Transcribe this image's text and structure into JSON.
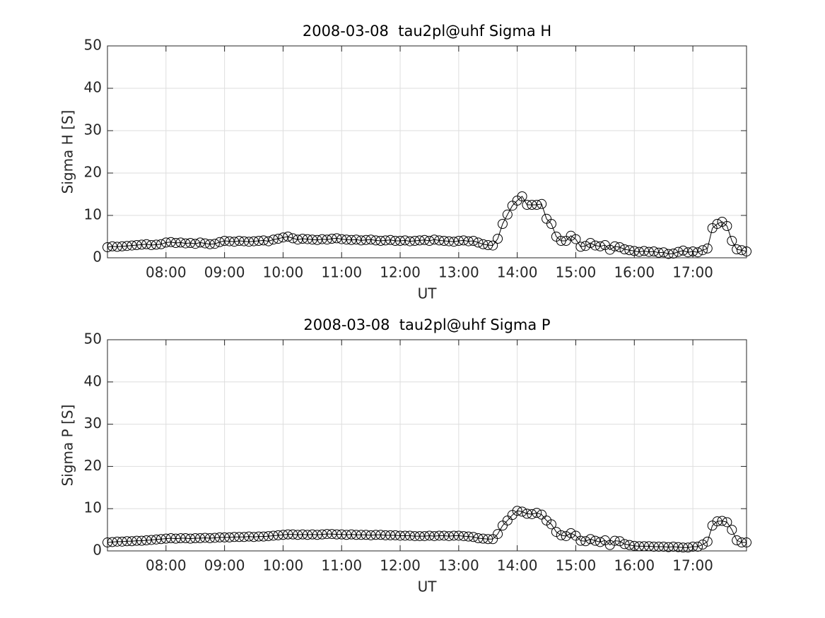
{
  "chart_data": [
    {
      "type": "line",
      "title": "2008-03-08  tau2pl@uhf Sigma H",
      "xlabel": "UT",
      "ylabel": "Sigma H [S]",
      "x": [
        "07:00",
        "07:05",
        "07:10",
        "07:15",
        "07:20",
        "07:25",
        "07:30",
        "07:35",
        "07:40",
        "07:45",
        "07:50",
        "07:55",
        "08:00",
        "08:05",
        "08:10",
        "08:15",
        "08:20",
        "08:25",
        "08:30",
        "08:35",
        "08:40",
        "08:45",
        "08:50",
        "08:55",
        "09:00",
        "09:05",
        "09:10",
        "09:15",
        "09:20",
        "09:25",
        "09:30",
        "09:35",
        "09:40",
        "09:45",
        "09:50",
        "09:55",
        "10:00",
        "10:05",
        "10:10",
        "10:15",
        "10:20",
        "10:25",
        "10:30",
        "10:35",
        "10:40",
        "10:45",
        "10:50",
        "10:55",
        "11:00",
        "11:05",
        "11:10",
        "11:15",
        "11:20",
        "11:25",
        "11:30",
        "11:35",
        "11:40",
        "11:45",
        "11:50",
        "11:55",
        "12:00",
        "12:05",
        "12:10",
        "12:15",
        "12:20",
        "12:25",
        "12:30",
        "12:35",
        "12:40",
        "12:45",
        "12:50",
        "12:55",
        "13:00",
        "13:05",
        "13:10",
        "13:15",
        "13:20",
        "13:25",
        "13:30",
        "13:35",
        "13:40",
        "13:45",
        "13:50",
        "13:55",
        "14:00",
        "14:05",
        "14:10",
        "14:15",
        "14:20",
        "14:25",
        "14:30",
        "14:35",
        "14:40",
        "14:45",
        "14:50",
        "14:55",
        "15:00",
        "15:05",
        "15:10",
        "15:15",
        "15:20",
        "15:25",
        "15:30",
        "15:35",
        "15:40",
        "15:45",
        "15:50",
        "15:55",
        "16:00",
        "16:05",
        "16:10",
        "16:15",
        "16:20",
        "16:25",
        "16:30",
        "16:35",
        "16:40",
        "16:45",
        "16:50",
        "16:55",
        "17:00",
        "17:05",
        "17:10",
        "17:15",
        "17:20",
        "17:25",
        "17:30",
        "17:35",
        "17:40",
        "17:45",
        "17:50",
        "17:55"
      ],
      "values": [
        2.5,
        2.7,
        2.6,
        2.7,
        2.8,
        2.9,
        3.0,
        3.1,
        3.2,
        3.0,
        3.1,
        3.2,
        3.6,
        3.7,
        3.5,
        3.6,
        3.4,
        3.5,
        3.3,
        3.6,
        3.4,
        3.2,
        3.3,
        3.7,
        4.0,
        3.9,
        3.8,
        4.0,
        3.9,
        3.8,
        3.9,
        4.0,
        4.1,
        3.9,
        4.3,
        4.5,
        4.8,
        5.0,
        4.6,
        4.3,
        4.5,
        4.4,
        4.3,
        4.2,
        4.4,
        4.3,
        4.5,
        4.6,
        4.4,
        4.3,
        4.2,
        4.3,
        4.1,
        4.2,
        4.3,
        4.1,
        4.0,
        4.1,
        4.2,
        4.0,
        4.0,
        4.1,
        3.9,
        4.0,
        4.1,
        4.2,
        4.0,
        4.3,
        4.1,
        4.0,
        3.9,
        3.8,
        4.0,
        4.1,
        3.9,
        4.0,
        3.6,
        3.2,
        3.0,
        2.9,
        4.5,
        8.0,
        10.2,
        12.3,
        13.5,
        14.5,
        12.5,
        12.5,
        12.5,
        12.7,
        9.2,
        8.0,
        5.0,
        4.0,
        4.0,
        5.2,
        4.4,
        2.6,
        2.8,
        3.5,
        2.9,
        2.7,
        3.0,
        1.9,
        2.7,
        2.5,
        2.0,
        1.8,
        1.6,
        1.4,
        1.6,
        1.4,
        1.5,
        1.2,
        1.3,
        0.9,
        1.0,
        1.4,
        1.7,
        1.3,
        1.5,
        1.3,
        1.8,
        2.2,
        7.0,
        8.0,
        8.5,
        7.5,
        4.0,
        2.0,
        1.8,
        1.5
      ],
      "color": "#000000",
      "marker": "circle",
      "xlim": [
        "07:00",
        "17:55"
      ],
      "xticks": [
        "08:00",
        "09:00",
        "10:00",
        "11:00",
        "12:00",
        "13:00",
        "14:00",
        "15:00",
        "16:00",
        "17:00"
      ],
      "ylim": [
        0,
        50
      ],
      "yticks": [
        0,
        10,
        20,
        30,
        40,
        50
      ],
      "grid": true
    },
    {
      "type": "line",
      "title": "2008-03-08  tau2pl@uhf Sigma P",
      "xlabel": "UT",
      "ylabel": "Sigma P [S]",
      "x": [
        "07:00",
        "07:05",
        "07:10",
        "07:15",
        "07:20",
        "07:25",
        "07:30",
        "07:35",
        "07:40",
        "07:45",
        "07:50",
        "07:55",
        "08:00",
        "08:05",
        "08:10",
        "08:15",
        "08:20",
        "08:25",
        "08:30",
        "08:35",
        "08:40",
        "08:45",
        "08:50",
        "08:55",
        "09:00",
        "09:05",
        "09:10",
        "09:15",
        "09:20",
        "09:25",
        "09:30",
        "09:35",
        "09:40",
        "09:45",
        "09:50",
        "09:55",
        "10:00",
        "10:05",
        "10:10",
        "10:15",
        "10:20",
        "10:25",
        "10:30",
        "10:35",
        "10:40",
        "10:45",
        "10:50",
        "10:55",
        "11:00",
        "11:05",
        "11:10",
        "11:15",
        "11:20",
        "11:25",
        "11:30",
        "11:35",
        "11:40",
        "11:45",
        "11:50",
        "11:55",
        "12:00",
        "12:05",
        "12:10",
        "12:15",
        "12:20",
        "12:25",
        "12:30",
        "12:35",
        "12:40",
        "12:45",
        "12:50",
        "12:55",
        "13:00",
        "13:05",
        "13:10",
        "13:15",
        "13:20",
        "13:25",
        "13:30",
        "13:35",
        "13:40",
        "13:45",
        "13:50",
        "13:55",
        "14:00",
        "14:05",
        "14:10",
        "14:15",
        "14:20",
        "14:25",
        "14:30",
        "14:35",
        "14:40",
        "14:45",
        "14:50",
        "14:55",
        "15:00",
        "15:05",
        "15:10",
        "15:15",
        "15:20",
        "15:25",
        "15:30",
        "15:35",
        "15:40",
        "15:45",
        "15:50",
        "15:55",
        "16:00",
        "16:05",
        "16:10",
        "16:15",
        "16:20",
        "16:25",
        "16:30",
        "16:35",
        "16:40",
        "16:45",
        "16:50",
        "16:55",
        "17:00",
        "17:05",
        "17:10",
        "17:15",
        "17:20",
        "17:25",
        "17:30",
        "17:35",
        "17:40",
        "17:45",
        "17:50",
        "17:55"
      ],
      "values": [
        2.0,
        2.1,
        2.2,
        2.2,
        2.3,
        2.3,
        2.4,
        2.4,
        2.5,
        2.6,
        2.7,
        2.8,
        2.9,
        3.0,
        2.9,
        3.0,
        3.0,
        2.9,
        3.0,
        3.0,
        3.1,
        3.0,
        3.1,
        3.2,
        3.2,
        3.2,
        3.3,
        3.3,
        3.3,
        3.4,
        3.3,
        3.4,
        3.4,
        3.5,
        3.6,
        3.7,
        3.8,
        3.9,
        3.9,
        3.8,
        3.9,
        3.8,
        3.9,
        3.8,
        3.9,
        4.0,
        4.0,
        3.9,
        3.9,
        3.8,
        3.9,
        3.8,
        3.8,
        3.8,
        3.7,
        3.8,
        3.8,
        3.7,
        3.7,
        3.7,
        3.6,
        3.6,
        3.6,
        3.5,
        3.5,
        3.5,
        3.6,
        3.5,
        3.6,
        3.6,
        3.5,
        3.6,
        3.6,
        3.5,
        3.4,
        3.3,
        3.0,
        2.9,
        2.8,
        2.8,
        4.0,
        6.0,
        7.2,
        8.5,
        9.5,
        9.3,
        8.8,
        8.7,
        9.0,
        8.6,
        7.2,
        6.3,
        4.5,
        3.7,
        3.5,
        4.2,
        3.6,
        2.4,
        2.3,
        2.8,
        2.4,
        2.1,
        2.5,
        1.4,
        2.4,
        2.3,
        1.6,
        1.4,
        1.2,
        1.1,
        1.1,
        1.1,
        1.0,
        1.0,
        1.0,
        0.9,
        1.0,
        0.9,
        0.8,
        0.8,
        1.0,
        1.0,
        1.5,
        2.2,
        6.0,
        7.0,
        7.1,
        6.8,
        5.0,
        2.5,
        2.0,
        2.0
      ],
      "color": "#000000",
      "marker": "circle",
      "xlim": [
        "07:00",
        "17:55"
      ],
      "xticks": [
        "08:00",
        "09:00",
        "10:00",
        "11:00",
        "12:00",
        "13:00",
        "14:00",
        "15:00",
        "16:00",
        "17:00"
      ],
      "ylim": [
        0,
        50
      ],
      "yticks": [
        0,
        10,
        20,
        30,
        40,
        50
      ],
      "grid": true
    }
  ]
}
